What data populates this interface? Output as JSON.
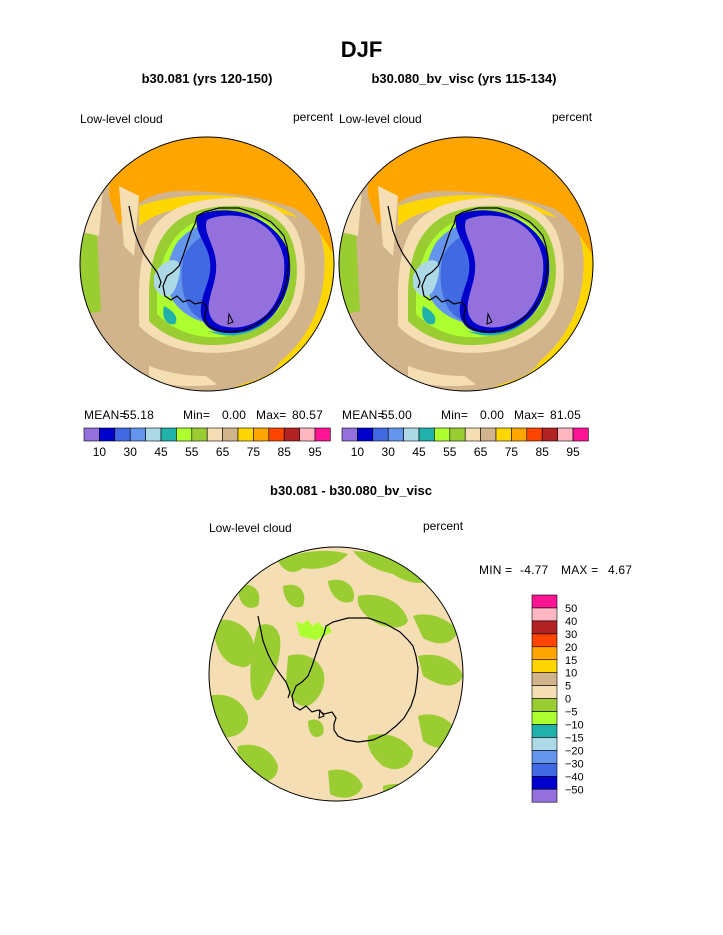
{
  "page": {
    "season": "DJF"
  },
  "panels": [
    {
      "title": "b30.081 (yrs 120-150)",
      "left_label": "Low-level cloud",
      "right_label": "percent",
      "stats": {
        "mean_label": "MEAN=",
        "mean": "55.18",
        "min_label": "Min=",
        "min": "0.00",
        "max_label": "Max=",
        "max": "80.57"
      }
    },
    {
      "title": "b30.080_bv_visc (yrs 115-134)",
      "left_label": "Low-level cloud",
      "right_label": "percent",
      "stats": {
        "mean_label": "MEAN=",
        "mean": "55.00",
        "min_label": "Min=",
        "min": "0.00",
        "max_label": "Max=",
        "max": "81.05"
      }
    }
  ],
  "abs_colorbar": {
    "colors": [
      "#9370db",
      "#0000cd",
      "#4169e1",
      "#6495ed",
      "#add8e6",
      "#20b2aa",
      "#adff2f",
      "#9acd32",
      "#f5deb3",
      "#d2b48c",
      "#ffd700",
      "#ffa500",
      "#ff4500",
      "#b22222",
      "#ffb6c1",
      "#ff1493"
    ],
    "tick_labels": [
      "10",
      "30",
      "45",
      "55",
      "65",
      "75",
      "85",
      "95"
    ]
  },
  "diff": {
    "title": "b30.081 - b30.080_bv_visc",
    "left_label": "Low-level cloud",
    "right_label": "percent",
    "min_label": "MIN =",
    "min": "-4.77",
    "max_label": "MAX =",
    "max": "4.67"
  },
  "diff_colorbar": {
    "colors": [
      "#ff1493",
      "#ffb6c1",
      "#b22222",
      "#ff4500",
      "#ffa500",
      "#ffd700",
      "#d2b48c",
      "#f5deb3",
      "#9acd32",
      "#adff2f",
      "#20b2aa",
      "#add8e6",
      "#6495ed",
      "#4169e1",
      "#0000cd",
      "#9370db"
    ],
    "tick_labels": [
      "50",
      "40",
      "30",
      "20",
      "15",
      "10",
      "5",
      "0",
      "−5",
      "−10",
      "−15",
      "−20",
      "−30",
      "−40",
      "−50"
    ]
  },
  "chart_data": [
    {
      "type": "heatmap",
      "projection": "south-polar-stereographic",
      "title": "b30.081 (yrs 120-150)",
      "variable": "Low-level cloud",
      "units": "percent",
      "season": "DJF",
      "contour_levels": [
        10,
        20,
        30,
        40,
        45,
        50,
        55,
        60,
        65,
        70,
        75,
        80,
        85,
        90,
        95
      ],
      "mean": 55.18,
      "min": 0.0,
      "max": 80.57
    },
    {
      "type": "heatmap",
      "projection": "south-polar-stereographic",
      "title": "b30.080_bv_visc (yrs 115-134)",
      "variable": "Low-level cloud",
      "units": "percent",
      "season": "DJF",
      "contour_levels": [
        10,
        20,
        30,
        40,
        45,
        50,
        55,
        60,
        65,
        70,
        75,
        80,
        85,
        90,
        95
      ],
      "mean": 55.0,
      "min": 0.0,
      "max": 81.05
    },
    {
      "type": "heatmap",
      "projection": "south-polar-stereographic",
      "title": "b30.081 - b30.080_bv_visc",
      "variable": "Low-level cloud",
      "units": "percent",
      "contour_levels": [
        -50,
        -40,
        -30,
        -20,
        -15,
        -10,
        -5,
        0,
        5,
        10,
        15,
        20,
        30,
        40,
        50
      ],
      "min": -4.77,
      "max": 4.67
    }
  ]
}
